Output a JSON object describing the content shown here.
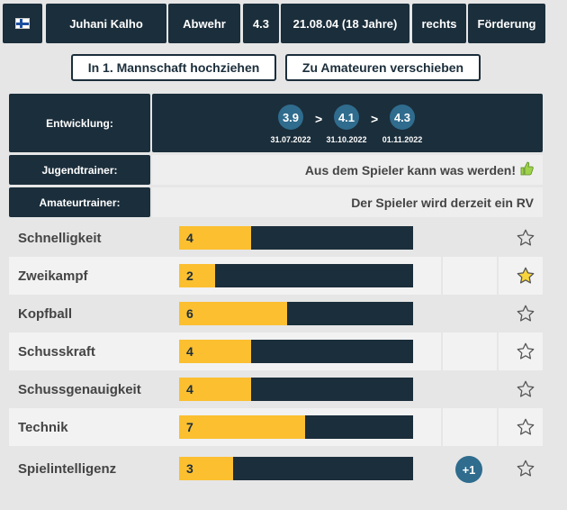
{
  "header": {
    "flag_icon": "finland-flag-icon",
    "name": "Juhani Kalho",
    "position": "Abwehr",
    "rating": "4.3",
    "birth": "21.08.04 (18 Jahre)",
    "foot": "rechts",
    "status": "Förderung"
  },
  "actions": {
    "promote_label": "In 1. Mannschaft hochziehen",
    "amateur_label": "Zu Amateuren verschieben"
  },
  "development": {
    "label": "Entwicklung:",
    "steps": [
      {
        "value": "3.9",
        "date": "31.07.2022"
      },
      {
        "value": "4.1",
        "date": "31.10.2022"
      },
      {
        "value": "4.3",
        "date": "01.11.2022"
      }
    ],
    "arrow": ">"
  },
  "youth_coach": {
    "label": "Jugendtrainer:",
    "text": "Aus dem Spieler kann was werden!",
    "icon": "thumbs-up-icon"
  },
  "amateur_coach": {
    "label": "Amateurtrainer:",
    "text": "Der Spieler wird derzeit ein RV"
  },
  "skills": [
    {
      "name": "Schnelligkeit",
      "value": "4",
      "fill": 0.3077,
      "starred": false,
      "bonus": ""
    },
    {
      "name": "Zweikampf",
      "value": "2",
      "fill": 0.1538,
      "starred": true,
      "bonus": ""
    },
    {
      "name": "Kopfball",
      "value": "6",
      "fill": 0.4615,
      "starred": false,
      "bonus": ""
    },
    {
      "name": "Schusskraft",
      "value": "4",
      "fill": 0.3077,
      "starred": false,
      "bonus": ""
    },
    {
      "name": "Schussgenauigkeit",
      "value": "4",
      "fill": 0.3077,
      "starred": false,
      "bonus": ""
    },
    {
      "name": "Technik",
      "value": "7",
      "fill": 0.5385,
      "starred": false,
      "bonus": ""
    },
    {
      "name": "Spielintelligenz",
      "value": "3",
      "fill": 0.2308,
      "starred": false,
      "bonus": "+1"
    }
  ],
  "colors": {
    "dark": "#1b2e3b",
    "bar_fill": "#fbbf30",
    "badge": "#2f6c8e",
    "star_gold": "#f7d43c"
  }
}
